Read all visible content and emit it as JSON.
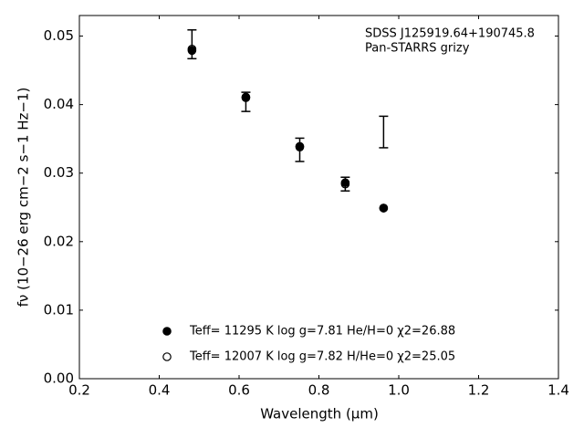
{
  "chart_data": {
    "type": "scatter",
    "xlabel": "Wavelength (μm)",
    "ylabel": "fν (10−26 erg cm−2 s−1 Hz−1)",
    "annotations": [
      "SDSS J125919.64+190745.8",
      "Pan-STARRS grizy"
    ],
    "xlim": [
      0.2,
      1.4
    ],
    "xticks": [
      0.2,
      0.4,
      0.6,
      0.8,
      {
        "value": 1.0,
        "label": "1.0"
      },
      1.2,
      1.4
    ],
    "ylim": [
      0,
      0.053
    ],
    "yticks": [
      {
        "value": 0,
        "label": "0.00"
      },
      {
        "value": 0.01,
        "label": "0.01"
      },
      {
        "value": 0.02,
        "label": "0.02"
      },
      {
        "value": 0.03,
        "label": "0.03"
      },
      {
        "value": 0.04,
        "label": "0.04"
      },
      {
        "value": 0.05,
        "label": "0.05"
      }
    ],
    "x": [
      0.482,
      0.617,
      0.752,
      0.866,
      0.962
    ],
    "observed": {
      "color": "#000000",
      "values": [
        0.0488,
        0.0404,
        0.0334,
        0.0284,
        0.036
      ],
      "errors": [
        0.0021,
        0.0014,
        0.0017,
        0.001,
        0.0023
      ]
    },
    "series": [
      {
        "name": "Teff= 11295 K  log g=7.81  He/H=0  χ2=26.88",
        "color": "#000000",
        "filled": true,
        "values": [
          0.0479,
          0.0411,
          0.0339,
          0.0286,
          0.0249
        ]
      },
      {
        "name": "Teff= 12007 K  log g=7.82  H/He=0  χ2=25.05",
        "color": "#000000",
        "filled": false,
        "values": [
          0.0481,
          0.041,
          0.0338,
          0.0284,
          0.0249
        ]
      }
    ]
  }
}
